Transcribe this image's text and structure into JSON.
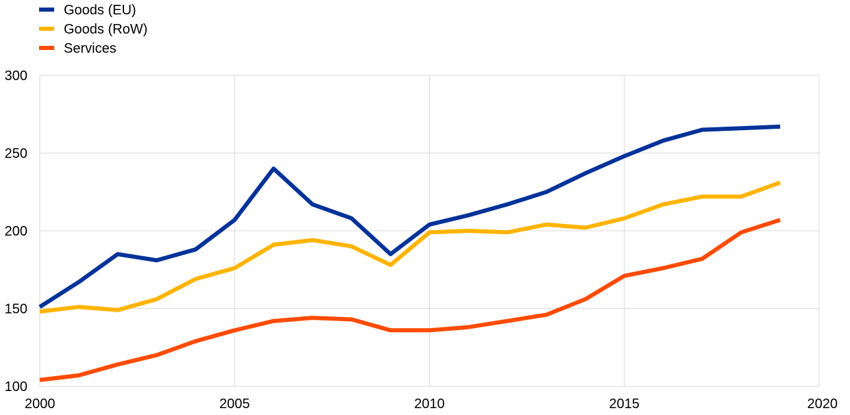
{
  "chart_data": {
    "type": "line",
    "title": "",
    "xlabel": "",
    "ylabel": "",
    "xlim": [
      2000,
      2020
    ],
    "ylim": [
      100,
      300
    ],
    "x_ticks": [
      "2000",
      "2005",
      "2010",
      "2015",
      "2020"
    ],
    "y_ticks": [
      "100",
      "150",
      "200",
      "250",
      "300"
    ],
    "grid": "both",
    "legend_position": "top-left",
    "x": [
      2000,
      2001,
      2002,
      2003,
      2004,
      2005,
      2006,
      2007,
      2008,
      2009,
      2010,
      2011,
      2012,
      2013,
      2014,
      2015,
      2016,
      2017,
      2018,
      2019
    ],
    "series": [
      {
        "name": "Goods (EU)",
        "color": "#003299",
        "values": [
          151,
          167,
          185,
          181,
          188,
          207,
          240,
          217,
          208,
          185,
          204,
          210,
          217,
          225,
          237,
          248,
          258,
          265,
          266,
          267
        ]
      },
      {
        "name": "Goods (RoW)",
        "color": "#ffb400",
        "values": [
          148,
          151,
          149,
          156,
          169,
          176,
          191,
          194,
          190,
          178,
          199,
          200,
          199,
          204,
          202,
          208,
          217,
          222,
          222,
          231
        ]
      },
      {
        "name": "Services",
        "color": "#ff4b00",
        "values": [
          104,
          107,
          114,
          120,
          129,
          136,
          142,
          144,
          143,
          136,
          136,
          138,
          142,
          146,
          156,
          171,
          176,
          182,
          199,
          207
        ]
      }
    ]
  }
}
